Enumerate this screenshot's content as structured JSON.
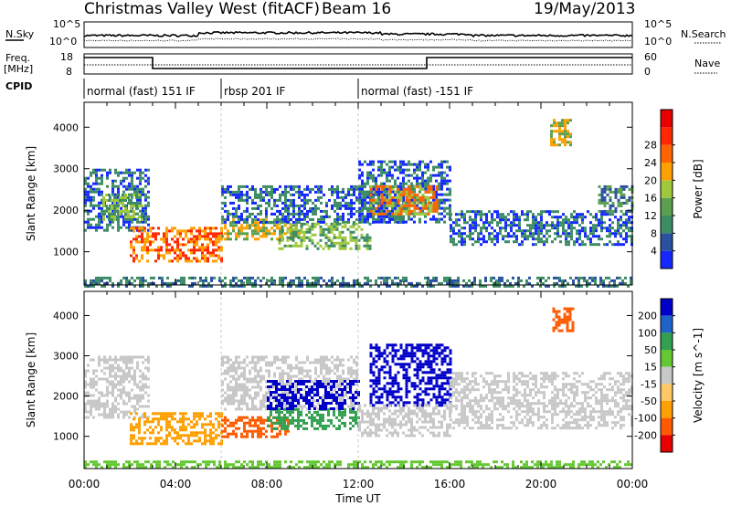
{
  "header": {
    "station": "Christmas Valley West (fitACF)",
    "beam": "Beam 16",
    "date": "19/May/2013"
  },
  "strip_labels": {
    "nsky": "N.Sky",
    "nsearch": "N.Search",
    "freq_line1": "Freq.",
    "freq_line2": "[MHz]",
    "nave": "Nave",
    "cpid": "CPID",
    "nsky_top": "10^5",
    "nsky_bottom": "10^0",
    "nsearch_top": "10^5",
    "nsearch_bottom": "10^0",
    "freq_top": "18",
    "freq_bottom": "8",
    "nave_top": "60",
    "nave_bottom": "0"
  },
  "cpid_modes": [
    {
      "label": "normal (fast) 151 IF",
      "start_hour": 0
    },
    {
      "label": "rbsp 201 IF",
      "start_hour": 6
    },
    {
      "label": "normal (fast) -151 IF",
      "start_hour": 12
    }
  ],
  "colors": {
    "power": [
      "#1428ff",
      "#2a50a0",
      "#3c8c64",
      "#5aa050",
      "#a0c83c",
      "#ffa000",
      "#ff6400",
      "#ff2800",
      "#e60000"
    ],
    "velocity": [
      "#e60000",
      "#ff5a00",
      "#ffa000",
      "#ffc864",
      "#c8c8c8",
      "#c8c8c8",
      "#64c832",
      "#32a050",
      "#1e64c8",
      "#0000c8"
    ]
  },
  "chart_data": [
    {
      "type": "heatmap",
      "title": "Power",
      "xlabel": "Time UT",
      "ylabel": "Slant Range [km]",
      "colorbar_label": "Power [dB]",
      "x_ticks": [
        "00:00",
        "04:00",
        "08:00",
        "12:00",
        "16:00",
        "20:00",
        "00:00"
      ],
      "x_range_hours": [
        0,
        24
      ],
      "y_ticks": [
        1000,
        2000,
        3000,
        4000
      ],
      "y_range_km": [
        200,
        4600
      ],
      "colorbar_ticks": [
        "4",
        "8",
        "12",
        "16",
        "20",
        "24",
        "28"
      ],
      "colorbar_range": [
        0,
        32
      ],
      "regions": [
        {
          "t0": 0.0,
          "t1": 2.8,
          "r_lo": 1500,
          "r_hi": 3000,
          "value": 8
        },
        {
          "t0": 0.8,
          "t1": 2.6,
          "r_lo": 1800,
          "r_hi": 2400,
          "value": 16
        },
        {
          "t0": 2.0,
          "t1": 6.0,
          "r_lo": 800,
          "r_hi": 1600,
          "value": 26
        },
        {
          "t0": 6.0,
          "t1": 9.5,
          "r_lo": 1300,
          "r_hi": 1800,
          "value": 18
        },
        {
          "t0": 6.0,
          "t1": 14.0,
          "r_lo": 1700,
          "r_hi": 2600,
          "value": 8
        },
        {
          "t0": 8.5,
          "t1": 12.5,
          "r_lo": 1100,
          "r_hi": 1700,
          "value": 16
        },
        {
          "t0": 12.0,
          "t1": 16.0,
          "r_lo": 1700,
          "r_hi": 3200,
          "value": 8
        },
        {
          "t0": 12.5,
          "t1": 15.5,
          "r_lo": 1900,
          "r_hi": 2600,
          "value": 22
        },
        {
          "t0": 16.0,
          "t1": 24.0,
          "r_lo": 1200,
          "r_hi": 2000,
          "value": 8
        },
        {
          "t0": 20.4,
          "t1": 21.3,
          "r_lo": 3600,
          "r_hi": 4200,
          "value": 20
        },
        {
          "t0": 22.5,
          "t1": 24.0,
          "r_lo": 2000,
          "r_hi": 2600,
          "value": 12
        },
        {
          "t0": 0.0,
          "t1": 24.0,
          "r_lo": 200,
          "r_hi": 400,
          "value": 10
        }
      ]
    },
    {
      "type": "heatmap",
      "title": "Velocity",
      "xlabel": "Time UT",
      "ylabel": "Slant Range [km]",
      "colorbar_label": "Velocity [m s^-1]",
      "x_ticks": [
        "00:00",
        "04:00",
        "08:00",
        "12:00",
        "16:00",
        "20:00",
        "00:00"
      ],
      "x_range_hours": [
        0,
        24
      ],
      "y_ticks": [
        1000,
        2000,
        3000,
        4000
      ],
      "y_range_km": [
        200,
        4600
      ],
      "colorbar_ticks": [
        "200",
        "100",
        "50",
        "15",
        "-15",
        "-50",
        "-100",
        "-200"
      ],
      "colorbar_range": [
        -250,
        250
      ],
      "regions": [
        {
          "t0": 0.0,
          "t1": 2.8,
          "r_lo": 1500,
          "r_hi": 3000,
          "value": 0
        },
        {
          "t0": 2.0,
          "t1": 6.0,
          "r_lo": 800,
          "r_hi": 1600,
          "value": -80
        },
        {
          "t0": 6.0,
          "t1": 9.0,
          "r_lo": 1000,
          "r_hi": 1500,
          "value": -110
        },
        {
          "t0": 6.0,
          "t1": 12.0,
          "r_lo": 1700,
          "r_hi": 3000,
          "value": 0
        },
        {
          "t0": 8.0,
          "t1": 12.0,
          "r_lo": 1200,
          "r_hi": 1700,
          "value": 60
        },
        {
          "t0": 8.0,
          "t1": 12.0,
          "r_lo": 1700,
          "r_hi": 2400,
          "value": 210
        },
        {
          "t0": 12.5,
          "t1": 16.0,
          "r_lo": 1800,
          "r_hi": 3300,
          "value": 210
        },
        {
          "t0": 12.0,
          "t1": 16.0,
          "r_lo": 1000,
          "r_hi": 1800,
          "value": 0
        },
        {
          "t0": 16.0,
          "t1": 24.0,
          "r_lo": 1200,
          "r_hi": 2600,
          "value": 0
        },
        {
          "t0": 20.5,
          "t1": 21.4,
          "r_lo": 3600,
          "r_hi": 4200,
          "value": -150
        },
        {
          "t0": 0.0,
          "t1": 24.0,
          "r_lo": 200,
          "r_hi": 400,
          "value": 40
        }
      ]
    }
  ]
}
